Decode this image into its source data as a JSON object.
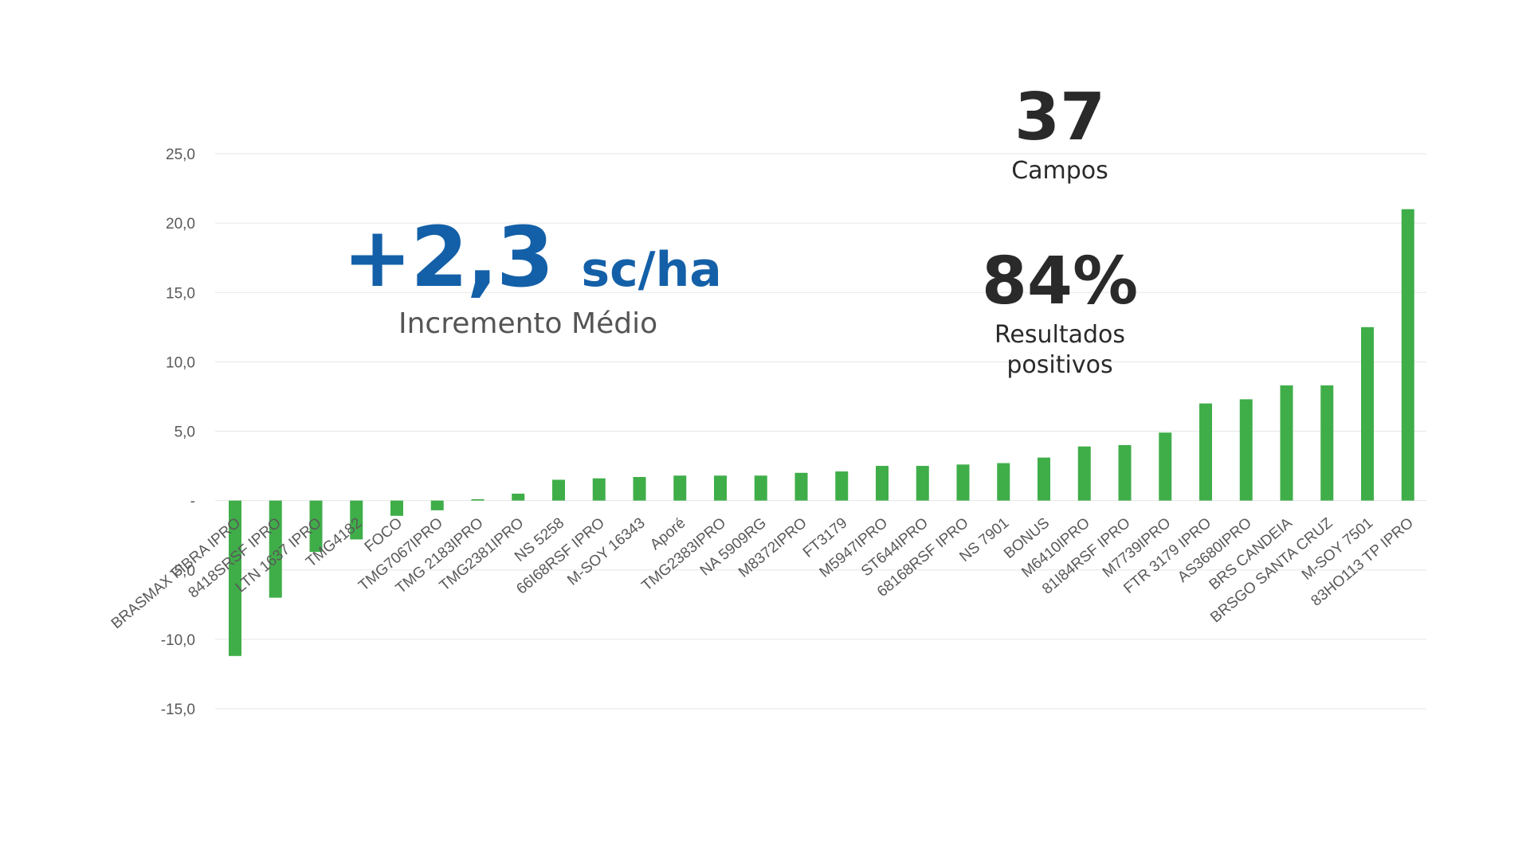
{
  "colors": {
    "bar": "#3fae49",
    "grid": "#e6e6e6",
    "tick": "#595959",
    "accent": "#1460a8",
    "text": "#2a2a2a"
  },
  "stats": {
    "fields_count": "37",
    "fields_label": "Campos",
    "positive_pct": "84%",
    "positive_label_line1": "Resultados",
    "positive_label_line2": "positivos",
    "increment_value": "+2,3",
    "increment_unit": "sc/ha",
    "increment_label": "Incremento Médio"
  },
  "chart_data": {
    "type": "bar",
    "title": "",
    "xlabel": "",
    "ylabel": "",
    "ylim": [
      -15,
      25
    ],
    "yticks": [
      {
        "value": 25,
        "label": "25,0"
      },
      {
        "value": 20,
        "label": "20,0"
      },
      {
        "value": 15,
        "label": "15,0"
      },
      {
        "value": 10,
        "label": "10,0"
      },
      {
        "value": 5,
        "label": "5,0"
      },
      {
        "value": 0,
        "label": "-"
      },
      {
        "value": -5,
        "label": "-5,0"
      },
      {
        "value": -10,
        "label": "-10,0"
      },
      {
        "value": -15,
        "label": "-15,0"
      }
    ],
    "grid": true,
    "categories": [
      "BRASMAX FIBRA IPRO",
      "8418SRSF IPRO",
      "LTN 1637 IPRO",
      "TMG4182",
      "FOCO",
      "TMG7067IPRO",
      "TMG 2183IPRO",
      "TMG2381IPRO",
      "NS 5258",
      "66I68RSF IPRO",
      "M-SOY 16343",
      "Aporé",
      "TMG2383IPRO",
      "NA 5909RG",
      "M8372IPRO",
      "FT3179",
      "M5947IPRO",
      "ST644IPRO",
      "68168RSF IPRO",
      "NS 7901",
      "BONUS",
      "M6410IPRO",
      "81I84RSF IPRO",
      "M7739IPRO",
      "FTR 3179 IPRO",
      "AS3680IPRO",
      "BRS CANDEIA",
      "BRSGO SANTA CRUZ",
      "M-SOY 7501",
      "83HO113 TP IPRO"
    ],
    "values": [
      -11.2,
      -7.0,
      -3.7,
      -2.8,
      -1.1,
      -0.7,
      0.1,
      0.5,
      1.5,
      1.6,
      1.7,
      1.8,
      1.8,
      1.8,
      2.0,
      2.1,
      2.5,
      2.5,
      2.6,
      2.7,
      3.1,
      3.9,
      4.0,
      4.9,
      7.0,
      7.3,
      8.3,
      8.3,
      12.5,
      21.0
    ]
  }
}
